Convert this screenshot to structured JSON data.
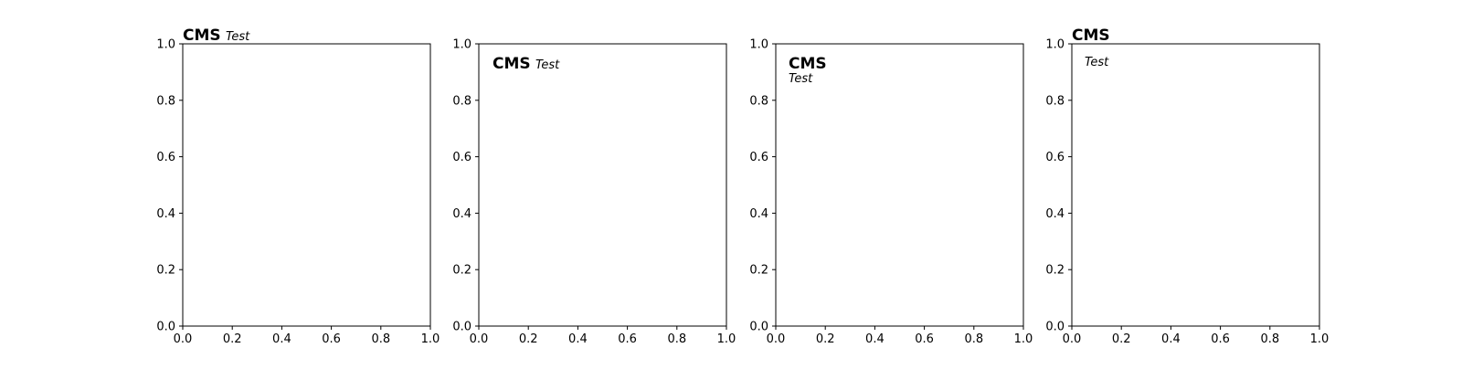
{
  "figure": {
    "background": "#ffffff"
  },
  "chart_data": [
    {
      "type": "scatter",
      "title": "",
      "xlabel": "",
      "ylabel": "",
      "xlim": [
        0,
        1
      ],
      "ylim": [
        0,
        1
      ],
      "x_ticks": [
        "0.0",
        "0.2",
        "0.4",
        "0.6",
        "0.8",
        "1.0"
      ],
      "y_ticks": [
        "0.0",
        "0.2",
        "0.4",
        "0.6",
        "0.8",
        "1.0"
      ],
      "series": [],
      "grid": false,
      "label": {
        "main": "CMS",
        "sub": "Test",
        "arrangement": "inline",
        "position": "outside-top-left"
      }
    },
    {
      "type": "scatter",
      "title": "",
      "xlabel": "",
      "ylabel": "",
      "xlim": [
        0,
        1
      ],
      "ylim": [
        0,
        1
      ],
      "x_ticks": [
        "0.0",
        "0.2",
        "0.4",
        "0.6",
        "0.8",
        "1.0"
      ],
      "y_ticks": [
        "0.0",
        "0.2",
        "0.4",
        "0.6",
        "0.8",
        "1.0"
      ],
      "series": [],
      "grid": false,
      "label": {
        "main": "CMS",
        "sub": "Test",
        "arrangement": "inline",
        "position": "inside-top-left"
      }
    },
    {
      "type": "scatter",
      "title": "",
      "xlabel": "",
      "ylabel": "",
      "xlim": [
        0,
        1
      ],
      "ylim": [
        0,
        1
      ],
      "x_ticks": [
        "0.0",
        "0.2",
        "0.4",
        "0.6",
        "0.8",
        "1.0"
      ],
      "y_ticks": [
        "0.0",
        "0.2",
        "0.4",
        "0.6",
        "0.8",
        "1.0"
      ],
      "series": [],
      "grid": false,
      "label": {
        "main": "CMS",
        "sub": "Test",
        "arrangement": "stacked",
        "position": "inside-top-left"
      }
    },
    {
      "type": "scatter",
      "title": "",
      "xlabel": "",
      "ylabel": "",
      "xlim": [
        0,
        1
      ],
      "ylim": [
        0,
        1
      ],
      "x_ticks": [
        "0.0",
        "0.2",
        "0.4",
        "0.6",
        "0.8",
        "1.0"
      ],
      "y_ticks": [
        "0.0",
        "0.2",
        "0.4",
        "0.6",
        "0.8",
        "1.0"
      ],
      "series": [],
      "grid": false,
      "label": {
        "main": "CMS",
        "sub": "Test",
        "arrangement": "split",
        "position": "main-outside-sub-inside-top-left"
      }
    }
  ]
}
